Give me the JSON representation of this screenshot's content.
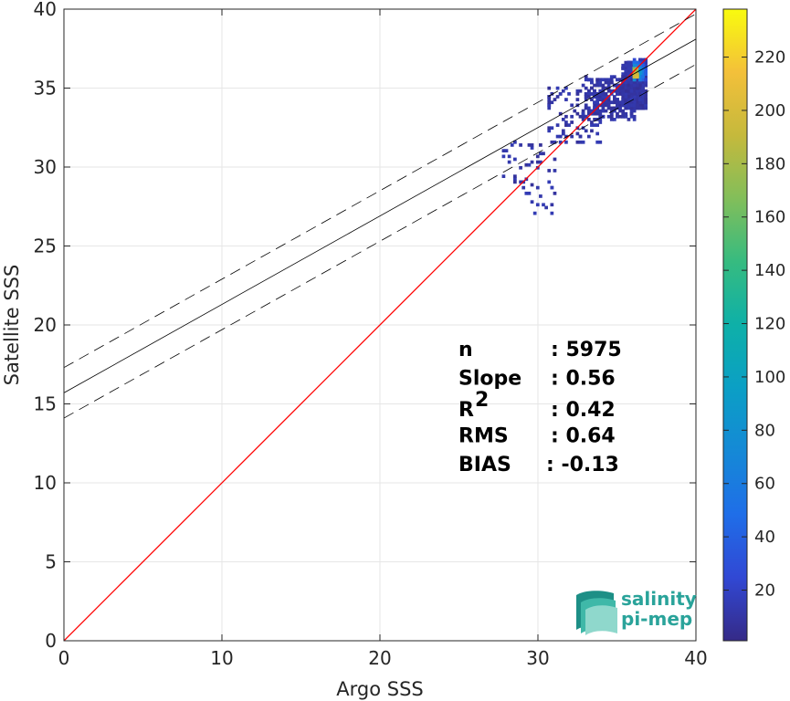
{
  "chart_data": {
    "type": "scatter",
    "subtype": "2d-density-histogram",
    "xlabel": "Argo SSS",
    "ylabel": "Satellite SSS",
    "xlim": [
      0,
      40
    ],
    "ylim": [
      0,
      40
    ],
    "x_ticks": [
      0,
      10,
      20,
      30,
      40
    ],
    "y_ticks": [
      0,
      5,
      10,
      15,
      20,
      25,
      30,
      35,
      40
    ],
    "grid": true,
    "identity_line": {
      "color": "#ff0000",
      "x": [
        0,
        40
      ],
      "y": [
        0,
        40
      ]
    },
    "regression_line": {
      "color": "#000000",
      "intercept": 15.7,
      "slope": 0.56
    },
    "confidence_band": {
      "color": "#000000",
      "style": "dashed",
      "upper_intercept": 17.3,
      "lower_intercept": 14.1,
      "slope": 0.56
    },
    "density_cluster": {
      "x_range": [
        27,
        37
      ],
      "y_range": [
        27,
        37
      ],
      "center": [
        36.0,
        35.9
      ],
      "max_count": 238
    },
    "colorbar": {
      "min": 1,
      "max": 238,
      "ticks": [
        20,
        40,
        60,
        80,
        100,
        120,
        140,
        160,
        180,
        200,
        220
      ],
      "colormap": "parula"
    },
    "annotations": [
      {
        "label": "n",
        "value": ": 5975"
      },
      {
        "label": "Slope",
        "value": ": 0.56"
      },
      {
        "label": "R",
        "sup": "2",
        "value": ": 0.42"
      },
      {
        "label": "RMS",
        "value": ": 0.64"
      },
      {
        "label": "BIAS",
        "value": ": -0.13"
      }
    ]
  },
  "logo": {
    "line1": "salinity",
    "line2": "pi-mep"
  }
}
